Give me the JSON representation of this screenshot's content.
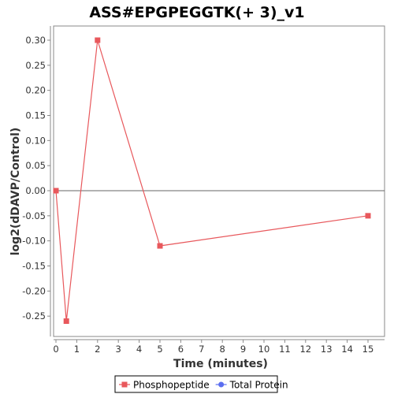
{
  "chart_data": {
    "type": "line",
    "title": "ASS#EPGPEGGTK(+ 3)_v1",
    "xlabel": "Time (minutes)",
    "ylabel": "log2(dDAVP/Control)",
    "xlim": [
      0,
      16
    ],
    "ylim": [
      -0.29,
      0.33
    ],
    "x_ticks": [
      0,
      1,
      2,
      3,
      4,
      5,
      6,
      7,
      8,
      9,
      10,
      11,
      12,
      13,
      14,
      15
    ],
    "x_tick_labels": [
      "0",
      "1",
      "2",
      "3",
      "4",
      "5",
      "6",
      "7",
      "8",
      "9",
      "10",
      "11",
      "12",
      "13",
      "14",
      "15"
    ],
    "y_ticks": [
      -0.25,
      -0.2,
      -0.15,
      -0.1,
      -0.05,
      0.0,
      0.05,
      0.1,
      0.15,
      0.2,
      0.25,
      0.3
    ],
    "y_tick_labels": [
      "-0.25",
      "-0.20",
      "-0.15",
      "-0.10",
      "-0.05",
      "0.00",
      "0.05",
      "0.10",
      "0.15",
      "0.20",
      "0.25",
      "0.30"
    ],
    "grid": false,
    "zero_line": true,
    "legend_position": "bottom-center",
    "series": [
      {
        "name": "Phosphopeptide",
        "color": "#e8585c",
        "marker": "square",
        "x": [
          0,
          0.5,
          2,
          5,
          15
        ],
        "y": [
          0.0,
          -0.26,
          0.3,
          -0.11,
          -0.05
        ]
      },
      {
        "name": "Total Protein",
        "color": "#5b6ef0",
        "marker": "circle",
        "x": [],
        "y": []
      }
    ]
  }
}
